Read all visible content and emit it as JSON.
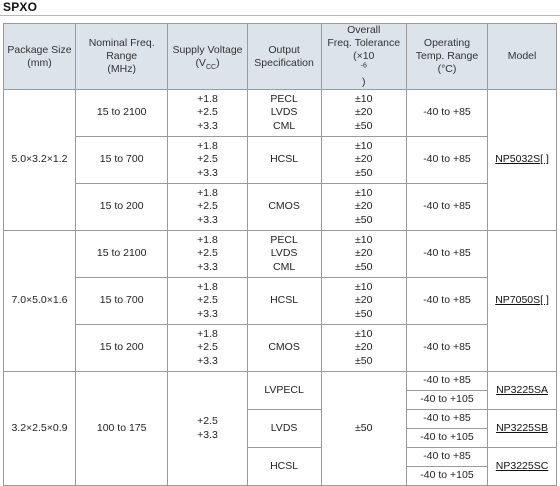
{
  "page_title": "SPXO",
  "headers": {
    "package_size": [
      "Package Size",
      "(mm)"
    ],
    "freq_range": [
      "Nominal Freq.",
      "Range",
      "(MHz)"
    ],
    "supply_voltage_main": "Supply Voltage (V",
    "supply_voltage_sub": "CC",
    "supply_voltage_end": ")",
    "output_spec": [
      "Output",
      "Specification"
    ],
    "tolerance": [
      "Overall",
      "Freq. Tolerance"
    ],
    "tolerance_unit_pre": "(×10",
    "tolerance_unit_sup": "-6",
    "tolerance_unit_post": ")",
    "temp_range": [
      "Operating",
      "Temp. Range",
      "(°C)"
    ],
    "model": "Model"
  },
  "groups": [
    {
      "package": "5.0×3.2×1.2",
      "model": "NP5032S[ ]",
      "rows": [
        {
          "freq": "15 to 2100",
          "voltage": [
            "+1.8",
            "+2.5",
            "+3.3"
          ],
          "output": [
            "PECL",
            "LVDS",
            "CML"
          ],
          "tolerance": [
            "±10",
            "±20",
            "±50"
          ],
          "temp": "-40 to +85"
        },
        {
          "freq": "15 to 700",
          "voltage": [
            "+1.8",
            "+2.5",
            "+3.3"
          ],
          "output": [
            "HCSL"
          ],
          "tolerance": [
            "±10",
            "±20",
            "±50"
          ],
          "temp": "-40 to +85"
        },
        {
          "freq": "15 to 200",
          "voltage": [
            "+1.8",
            "+2.5",
            "+3.3"
          ],
          "output": [
            "CMOS"
          ],
          "tolerance": [
            "±10",
            "±20",
            "±50"
          ],
          "temp": "-40 to +85"
        }
      ]
    },
    {
      "package": "7.0×5.0×1.6",
      "model": "NP7050S[ ]",
      "rows": [
        {
          "freq": "15 to 2100",
          "voltage": [
            "+1.8",
            "+2.5",
            "+3.3"
          ],
          "output": [
            "PECL",
            "LVDS",
            "CML"
          ],
          "tolerance": [
            "±10",
            "±20",
            "±50"
          ],
          "temp": "-40 to +85"
        },
        {
          "freq": "15 to 700",
          "voltage": [
            "+1.8",
            "+2.5",
            "+3.3"
          ],
          "output": [
            "HCSL"
          ],
          "tolerance": [
            "±10",
            "±20",
            "±50"
          ],
          "temp": "-40 to +85"
        },
        {
          "freq": "15 to 200",
          "voltage": [
            "+1.8",
            "+2.5",
            "+3.3"
          ],
          "output": [
            "CMOS"
          ],
          "tolerance": [
            "±10",
            "±20",
            "±50"
          ],
          "temp": "-40 to +85"
        }
      ]
    }
  ],
  "group3": {
    "package": "3.2×2.5×0.9",
    "freq": "100 to 175",
    "voltage": [
      "+2.5",
      "+3.3"
    ],
    "tolerance": "±50",
    "rows": [
      {
        "output": "LVPECL",
        "temps": [
          "-40 to +85",
          "-40 to +105"
        ],
        "models": [
          "NP3225SA"
        ]
      },
      {
        "output": "LVDS",
        "temps": [
          "-40 to +85",
          "-40 to +105"
        ],
        "models": [
          "NP3225SB"
        ]
      },
      {
        "output": "HCSL",
        "temps": [
          "-40 to +85",
          "-40 to +105"
        ],
        "models": [
          "NP3225SC"
        ]
      }
    ]
  }
}
